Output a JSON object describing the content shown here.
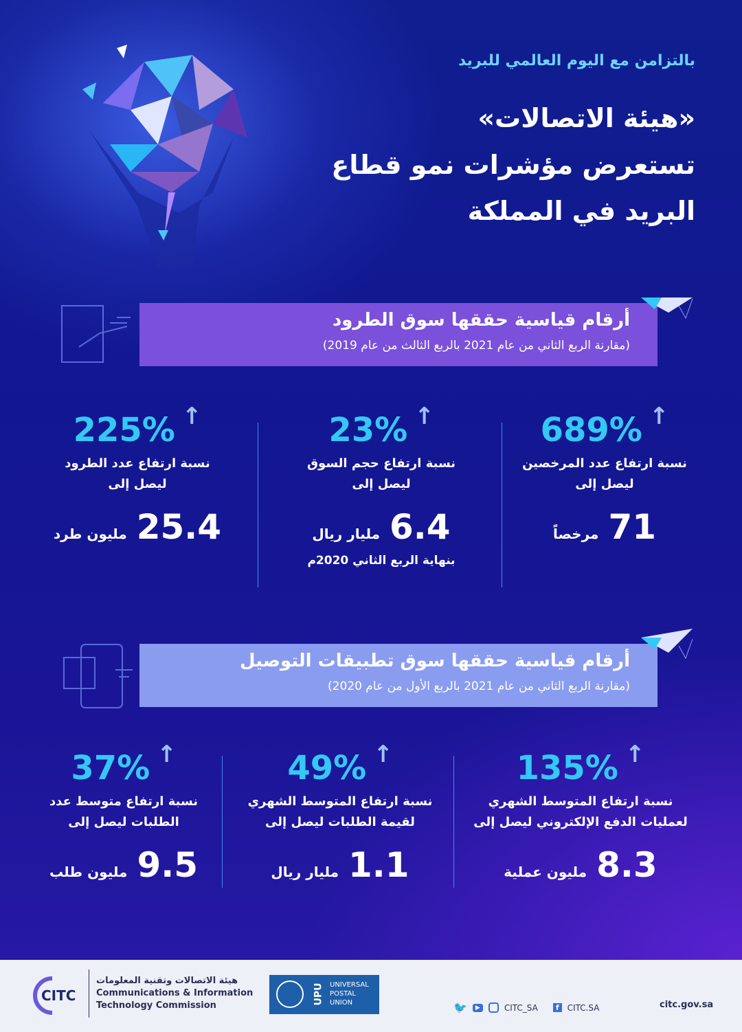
{
  "header": {
    "subtitle": "بالتزامن مع اليوم العالمي للبريد",
    "title_line1": "«هيئة الاتصالات»",
    "title_line2": "تستعرض مؤشرات نمو قطاع",
    "title_line3": "البريد في المملكة"
  },
  "colors": {
    "accent": "#34c8f4",
    "banner1": "#7b50da",
    "banner2": "#8a9cf0",
    "background": "#121791"
  },
  "section1": {
    "title": "أرقام قياسية حققها سوق الطرود",
    "subtitle": "(مقارنة الربع الثاني من عام 2021 بالربع الثالث من عام 2019)",
    "stats": [
      {
        "percent": "689%",
        "desc1": "نسبة ارتفاع عدد المرخصين",
        "desc2": "ليصل إلى",
        "value": "71",
        "unit": "مرخصاً",
        "note": ""
      },
      {
        "percent": "23%",
        "desc1": "نسبة ارتفاع حجم السوق",
        "desc2": "ليصل إلى",
        "value": "6.4",
        "unit": "مليار ريال",
        "note": "بنهاية الربع الثاني 2020م"
      },
      {
        "percent": "225%",
        "desc1": "نسبة ارتفاع عدد الطرود",
        "desc2": "ليصل إلى",
        "value": "25.4",
        "unit": "مليون طرد",
        "note": ""
      }
    ]
  },
  "section2": {
    "title": "أرقام قياسية حققها سوق تطبيقات التوصيل",
    "subtitle": "(مقارنة الربع الثاني من عام 2021 بالربع الأول من عام 2020)",
    "stats": [
      {
        "percent": "135%",
        "desc1": "نسبة ارتفاع المتوسط الشهري",
        "desc2": "لعمليات الدفع الإلكتروني ليصل إلى",
        "value": "8.3",
        "unit": "مليون عملية"
      },
      {
        "percent": "49%",
        "desc1": "نسبة ارتفاع المتوسط الشهري",
        "desc2": "لقيمة الطلبات ليصل إلى",
        "value": "1.1",
        "unit": "مليار ريال"
      },
      {
        "percent": "37%",
        "desc1": "نسبة ارتفاع متوسط عدد",
        "desc2": "الطلبات ليصل إلى",
        "value": "9.5",
        "unit": "مليون طلب"
      }
    ]
  },
  "footer": {
    "logo_text": "CITC",
    "org_ar": "هيئة الاتصالات وتقنية المعلومات",
    "org_en1": "Communications & Information",
    "org_en2": "Technology Commission",
    "upu_abbr": "UPU",
    "upu1": "UNIVERSAL",
    "upu2": "POSTAL",
    "upu3": "UNION",
    "social1": "CITC_SA",
    "social2": "CITC.SA",
    "website": "citc.gov.sa"
  }
}
